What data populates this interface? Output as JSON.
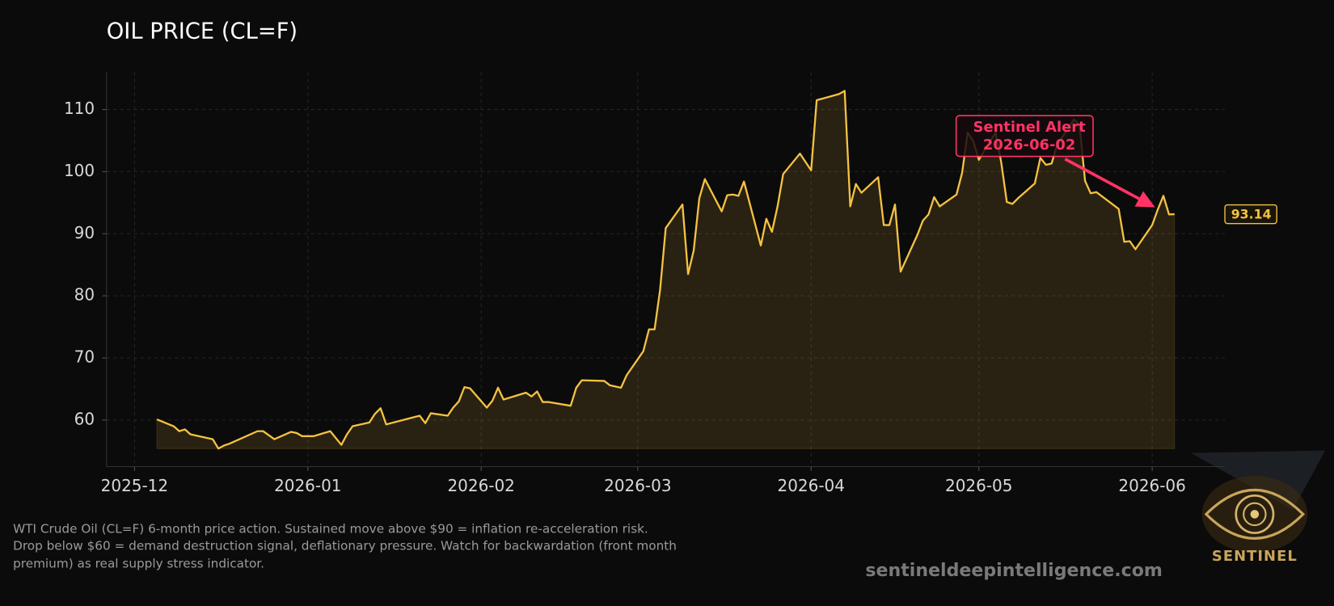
{
  "chart_data": {
    "type": "line",
    "title": "OIL PRICE (CL=F)",
    "x": [
      4,
      7,
      8,
      9,
      10,
      14,
      15,
      16,
      17,
      22,
      23,
      25,
      28,
      29,
      30,
      32,
      35,
      37,
      38,
      39,
      42,
      43,
      44,
      45,
      51,
      52,
      53,
      56,
      57,
      58,
      59,
      60,
      63,
      64,
      65,
      66,
      70,
      71,
      72,
      73,
      74,
      78,
      79,
      80,
      84,
      85,
      87,
      88,
      91,
      92,
      93,
      94,
      95,
      98,
      99,
      100,
      101,
      102,
      105,
      106,
      107,
      108,
      109,
      112,
      113,
      114,
      115,
      116,
      119,
      121,
      122,
      126,
      127,
      128,
      129,
      130,
      133,
      134,
      135,
      136,
      137,
      140,
      141,
      142,
      143,
      144,
      147,
      148,
      149,
      150,
      151,
      154,
      155,
      156,
      157,
      158,
      161,
      162,
      163,
      164,
      165,
      168,
      169,
      170,
      171,
      172,
      176,
      177,
      178,
      179,
      182,
      183,
      184,
      185,
      186
    ],
    "series": [
      {
        "color": "#f5c242",
        "values": [
          60.1,
          59.0,
          58.2,
          58.5,
          57.7,
          56.9,
          55.4,
          55.9,
          56.2,
          58.2,
          58.2,
          56.9,
          58.1,
          57.9,
          57.4,
          57.4,
          58.2,
          56.0,
          57.7,
          59.0,
          59.6,
          61.0,
          61.9,
          59.3,
          60.7,
          59.5,
          61.1,
          60.7,
          62.0,
          63.0,
          65.3,
          65.1,
          62.0,
          63.1,
          65.2,
          63.3,
          64.4,
          63.8,
          64.6,
          62.9,
          62.9,
          62.3,
          65.2,
          66.4,
          66.3,
          65.6,
          65.2,
          67.2,
          71.1,
          74.6,
          74.6,
          81.0,
          90.9,
          94.7,
          83.5,
          87.3,
          95.7,
          98.8,
          93.6,
          96.2,
          96.3,
          96.1,
          98.4,
          88.1,
          92.4,
          90.3,
          94.4,
          99.6,
          102.9,
          100.2,
          111.5,
          112.5,
          113.0,
          94.4,
          98.0,
          96.6,
          99.1,
          91.4,
          91.4,
          94.7,
          83.9,
          89.8,
          92.1,
          93.1,
          95.9,
          94.4,
          96.3,
          99.8,
          106.3,
          104.9,
          101.9,
          106.3,
          101.5,
          95.1,
          94.8,
          95.7,
          98.1,
          102.2,
          101.1,
          101.3,
          104.3,
          108.4,
          107.5,
          98.5,
          96.5,
          96.7,
          94.0,
          88.7,
          88.8,
          87.5,
          91.4,
          93.9,
          96.1,
          93.1,
          93.14
        ]
      }
    ],
    "xlim": [
      -5,
      195
    ],
    "xticks": [
      {
        "value": 0,
        "label": "2025-12"
      },
      {
        "value": 31,
        "label": "2026-01"
      },
      {
        "value": 62,
        "label": "2026-02"
      },
      {
        "value": 90,
        "label": "2026-03"
      },
      {
        "value": 121,
        "label": "2026-04"
      },
      {
        "value": 151,
        "label": "2026-05"
      },
      {
        "value": 182,
        "label": "2026-06"
      }
    ],
    "ylim": [
      52.5,
      116
    ],
    "yticks": [
      60,
      70,
      80,
      90,
      100,
      110
    ],
    "grid": true,
    "annotation": {
      "lines": [
        "Sentinel Alert",
        "2026-06-02"
      ],
      "color": "#ff3366"
    }
  },
  "caption": [
    "WTI Crude Oil (CL=F) 6-month price action. Sustained move above $90 = inflation re-acceleration risk.",
    "Drop below $60 = demand destruction signal, deflationary pressure. Watch for backwardation (front month",
    "premium) as real supply stress indicator."
  ],
  "watermark": "sentineldeepintelligence.com",
  "logo_text": "SENTINEL"
}
